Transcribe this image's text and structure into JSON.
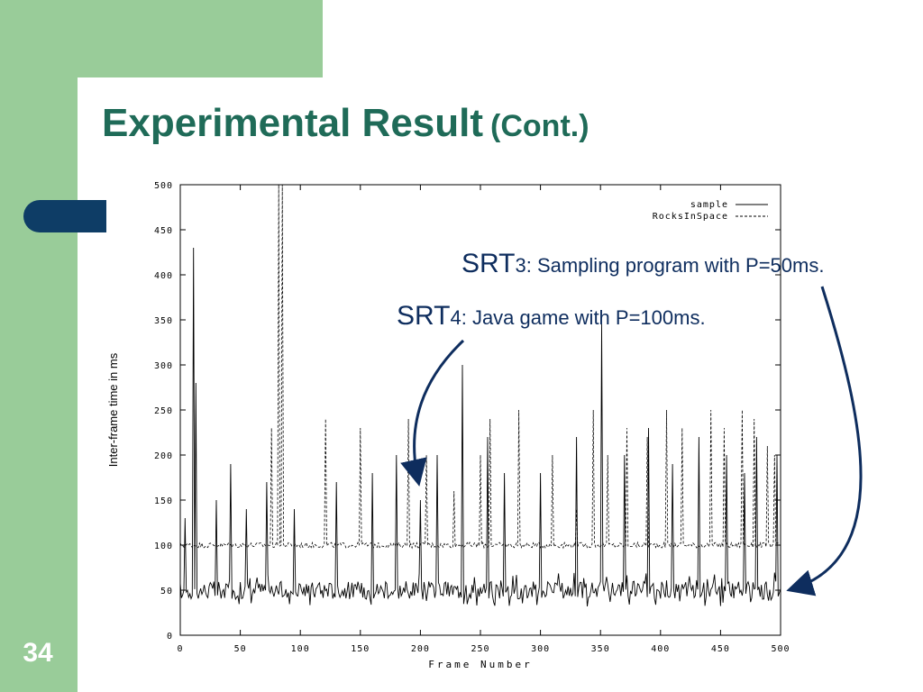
{
  "slide": {
    "title": "Experimental Result",
    "title_suffix": "(Cont.)",
    "page_number": "34",
    "colors": {
      "green": "#99cc99",
      "navy": "#0e3d66",
      "title": "#1f6b58",
      "annotation": "#0e2d5e"
    }
  },
  "annotations": {
    "srt3": {
      "label": "SRT",
      "subscript": "3",
      "text": ": Sampling program with P=50ms."
    },
    "srt4": {
      "label": "SRT",
      "subscript": "4",
      "text": ": Java game with P=100ms."
    }
  },
  "chart_data": {
    "type": "line",
    "xlabel": "Frame Number",
    "ylabel": "Inter-frame time in ms",
    "xlim": [
      0,
      500
    ],
    "ylim": [
      0,
      500
    ],
    "xticks": [
      0,
      50,
      100,
      150,
      200,
      250,
      300,
      350,
      400,
      450,
      500
    ],
    "yticks": [
      0,
      50,
      100,
      150,
      200,
      250,
      300,
      350,
      400,
      450,
      500
    ],
    "legend_position": "top-right",
    "series": [
      {
        "name": "sample",
        "style": "solid",
        "baseline": 50,
        "jitter": 10,
        "spikes": [
          [
            4,
            130
          ],
          [
            11,
            430
          ],
          [
            13,
            280
          ],
          [
            30,
            150
          ],
          [
            42,
            190
          ],
          [
            55,
            140
          ],
          [
            72,
            170
          ],
          [
            95,
            140
          ],
          [
            130,
            170
          ],
          [
            160,
            180
          ],
          [
            180,
            200
          ],
          [
            200,
            150
          ],
          [
            214,
            200
          ],
          [
            235,
            300
          ],
          [
            256,
            220
          ],
          [
            270,
            180
          ],
          [
            300,
            180
          ],
          [
            330,
            220
          ],
          [
            351,
            345
          ],
          [
            370,
            200
          ],
          [
            390,
            230
          ],
          [
            410,
            190
          ],
          [
            432,
            220
          ],
          [
            455,
            200
          ],
          [
            470,
            180
          ],
          [
            480,
            220
          ],
          [
            497,
            200
          ]
        ]
      },
      {
        "name": "RocksInSpace",
        "style": "dashed",
        "baseline": 100,
        "jitter": 3,
        "spikes": [
          [
            82,
            500
          ],
          [
            85,
            500
          ],
          [
            76,
            230
          ],
          [
            121,
            240
          ],
          [
            150,
            230
          ],
          [
            190,
            240
          ],
          [
            205,
            200
          ],
          [
            228,
            160
          ],
          [
            250,
            200
          ],
          [
            258,
            240
          ],
          [
            282,
            250
          ],
          [
            310,
            200
          ],
          [
            330,
            140
          ],
          [
            344,
            250
          ],
          [
            356,
            200
          ],
          [
            372,
            230
          ],
          [
            389,
            220
          ],
          [
            405,
            250
          ],
          [
            418,
            230
          ],
          [
            442,
            250
          ],
          [
            453,
            230
          ],
          [
            468,
            250
          ],
          [
            478,
            240
          ],
          [
            489,
            210
          ],
          [
            495,
            200
          ]
        ]
      }
    ]
  }
}
